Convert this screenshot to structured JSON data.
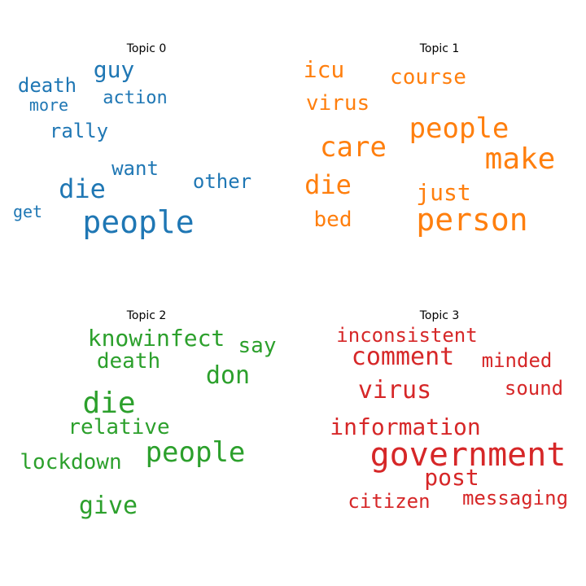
{
  "chart_data": [
    {
      "type": "wordcloud",
      "title": "Topic 0",
      "color": "#1f77b4",
      "words": [
        {
          "text": "people",
          "weight": 1.0
        },
        {
          "text": "die",
          "weight": 0.72
        },
        {
          "text": "guy",
          "weight": 0.6
        },
        {
          "text": "death",
          "weight": 0.55
        },
        {
          "text": "rally",
          "weight": 0.5
        },
        {
          "text": "want",
          "weight": 0.5
        },
        {
          "text": "other",
          "weight": 0.5
        },
        {
          "text": "action",
          "weight": 0.48
        },
        {
          "text": "more",
          "weight": 0.44
        },
        {
          "text": "get",
          "weight": 0.44
        }
      ]
    },
    {
      "type": "wordcloud",
      "title": "Topic 1",
      "color": "#ff7f0e",
      "words": [
        {
          "text": "person",
          "weight": 1.0
        },
        {
          "text": "make",
          "weight": 0.9
        },
        {
          "text": "people",
          "weight": 0.88
        },
        {
          "text": "care",
          "weight": 0.88
        },
        {
          "text": "die",
          "weight": 0.78
        },
        {
          "text": "icu",
          "weight": 0.68
        },
        {
          "text": "just",
          "weight": 0.68
        },
        {
          "text": "bed",
          "weight": 0.66
        },
        {
          "text": "course",
          "weight": 0.65
        },
        {
          "text": "virus",
          "weight": 0.65
        }
      ]
    },
    {
      "type": "wordcloud",
      "title": "Topic 2",
      "color": "#2ca02c",
      "words": [
        {
          "text": "die",
          "weight": 1.0
        },
        {
          "text": "people",
          "weight": 0.9
        },
        {
          "text": "don",
          "weight": 0.8
        },
        {
          "text": "give",
          "weight": 0.75
        },
        {
          "text": "knowinfect",
          "weight": 0.7
        },
        {
          "text": "death",
          "weight": 0.68
        },
        {
          "text": "say",
          "weight": 0.68
        },
        {
          "text": "relative",
          "weight": 0.66
        },
        {
          "text": "lockdown",
          "weight": 0.66
        }
      ]
    },
    {
      "type": "wordcloud",
      "title": "Topic 3",
      "color": "#d62728",
      "words": [
        {
          "text": "government",
          "weight": 1.0
        },
        {
          "text": "comment",
          "weight": 0.74
        },
        {
          "text": "virus",
          "weight": 0.72
        },
        {
          "text": "post",
          "weight": 0.7
        },
        {
          "text": "information",
          "weight": 0.68
        },
        {
          "text": "inconsistent",
          "weight": 0.62
        },
        {
          "text": "minded",
          "weight": 0.62
        },
        {
          "text": "sound",
          "weight": 0.62
        },
        {
          "text": "citizen",
          "weight": 0.62
        },
        {
          "text": "messaging",
          "weight": 0.62
        }
      ]
    }
  ]
}
